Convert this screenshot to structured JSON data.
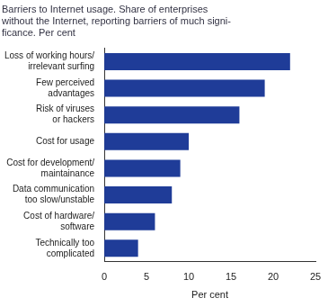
{
  "chart_data": {
    "type": "bar",
    "orientation": "horizontal",
    "title": [
      "Barriers to Internet usage. Share of enterprises",
      "without the Internet, reporting barriers of much signi-",
      "ficance. Per cent"
    ],
    "categories": [
      "Loss of working hours/\nirrelevant surfing",
      "Few perceived\nadvantages",
      "Risk of viruses\nor hackers",
      "Cost for usage",
      "Cost for development/\nmaintainance",
      "Data communication\ntoo slow/unstable",
      "Cost of hardware/\nsoftware",
      "Technically too\ncomplicated"
    ],
    "values": [
      22,
      19,
      16,
      10,
      9,
      8,
      6,
      4
    ],
    "color": "#1f3c98",
    "x_label": "Per cent",
    "xlim": [
      0,
      25
    ],
    "xticks": [
      0,
      5,
      10,
      15,
      20,
      25
    ],
    "grid": false
  }
}
